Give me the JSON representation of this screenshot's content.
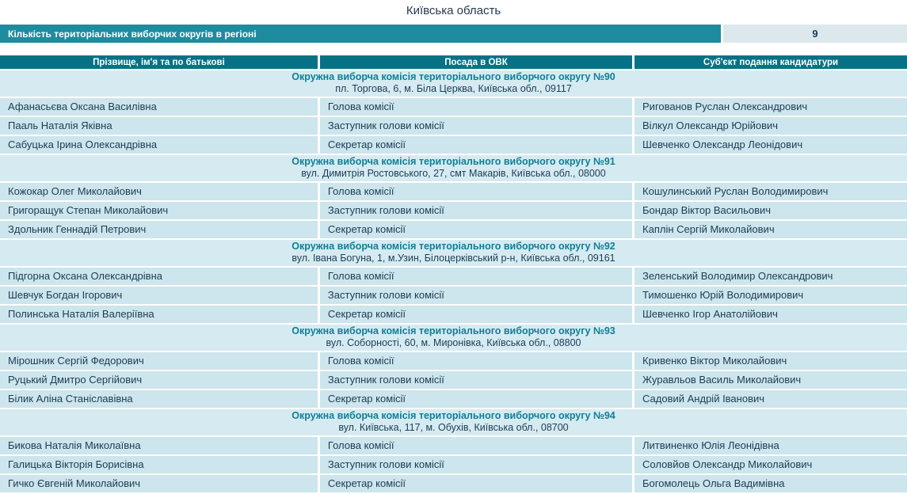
{
  "page": {
    "title": "Київська область"
  },
  "summary": {
    "label": "Кількість територіальних виборчих округів в регіоні",
    "value": "9"
  },
  "colors": {
    "banner_teal": "#1e8c9e",
    "header_teal": "#077286",
    "row_bg": "#cde5ec",
    "section_bg": "#d6ebf1",
    "value_cell_bg": "#dce8ec",
    "text_navy": "#1c3c55",
    "commission_teal": "#0e7f97"
  },
  "table": {
    "headers": [
      "Прізвище, ім'я та по батькові",
      "Посада в ОВК",
      "Суб'єкт подання кандидатури"
    ],
    "sections": [
      {
        "commission": "Окружна виборча комісія територіального виборчого округу №90",
        "address": "пл. Торгова, 6, м. Біла Церква, Київська обл., 09117",
        "rows": [
          {
            "name": "Афанасьєва Оксана Василівна",
            "position": "Голова комісії",
            "nominator": "Ригованов Руслан Олександрович"
          },
          {
            "name": "Пааль Наталія Яківна",
            "position": "Заступник голови комісії",
            "nominator": "Вілкул Олександр Юрійович"
          },
          {
            "name": "Сабуцька Ірина Олександрівна",
            "position": "Секретар комісії",
            "nominator": "Шевченко Олександр Леонідович"
          }
        ]
      },
      {
        "commission": "Окружна виборча комісія територіального виборчого округу №91",
        "address": "вул. Димитрія Ростовського, 27, смт Макарів, Київська обл., 08000",
        "rows": [
          {
            "name": "Кожокар Олег Миколайович",
            "position": "Голова комісії",
            "nominator": "Кошулинський Руслан Володимирович"
          },
          {
            "name": "Григоращук Степан Миколайович",
            "position": "Заступник голови комісії",
            "nominator": "Бондар Віктор Васильович"
          },
          {
            "name": "Здольник Геннадій Петрович",
            "position": "Секретар комісії",
            "nominator": "Каплін Сергій Миколайович"
          }
        ]
      },
      {
        "commission": "Окружна виборча комісія територіального виборчого округу №92",
        "address": "вул. Івана Богуна, 1, м.Узин, Білоцерківський р-н, Київська обл., 09161",
        "rows": [
          {
            "name": "Підгорна Оксана Олександрівна",
            "position": "Голова комісії",
            "nominator": "Зеленський Володимир Олександрович"
          },
          {
            "name": "Шевчук Богдан Ігорович",
            "position": "Заступник голови комісії",
            "nominator": "Тимошенко Юрій Володимирович"
          },
          {
            "name": "Полинська Наталія Валеріївна",
            "position": "Секретар комісії",
            "nominator": "Шевченко Ігор Анатолійович"
          }
        ]
      },
      {
        "commission": "Окружна виборча комісія територіального виборчого округу №93",
        "address": "вул. Соборності, 60, м. Миронівка, Київська обл., 08800",
        "rows": [
          {
            "name": "Мірошник Сергій Федорович",
            "position": "Голова комісії",
            "nominator": "Кривенко Віктор Миколайович"
          },
          {
            "name": "Руцький Дмитро Сергійович",
            "position": "Заступник голови комісії",
            "nominator": "Журавльов Василь Миколайович"
          },
          {
            "name": "Білик Аліна Станіславівна",
            "position": "Секретар комісії",
            "nominator": "Садовий Андрій Іванович"
          }
        ]
      },
      {
        "commission": "Окружна виборча комісія територіального виборчого округу №94",
        "address": "вул. Київська, 117, м. Обухів, Київська обл., 08700",
        "rows": [
          {
            "name": "Бикова Наталія Миколаївна",
            "position": "Голова комісії",
            "nominator": "Литвиненко Юлія Леонідівна"
          },
          {
            "name": "Галицька Вікторія Борисівна",
            "position": "Заступник голови комісії",
            "nominator": "Соловйов Олександр Миколайович"
          },
          {
            "name": "Гичко Євгеній Миколайович",
            "position": "Секретар комісії",
            "nominator": "Богомолець Ольга Вадимівна"
          }
        ]
      }
    ]
  }
}
